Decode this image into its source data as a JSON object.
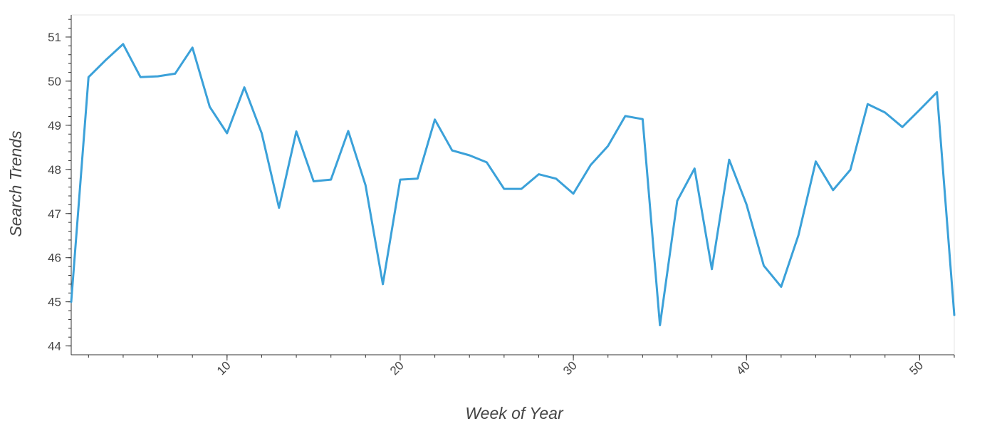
{
  "chart_data": {
    "type": "line",
    "title": "",
    "xlabel": "Week of Year",
    "ylabel": "Search Trends",
    "xlim": [
      1,
      52
    ],
    "ylim": [
      43.8,
      51.5
    ],
    "x_ticks": [
      10,
      20,
      30,
      40,
      50
    ],
    "y_ticks": [
      44,
      45,
      46,
      47,
      48,
      49,
      50,
      51
    ],
    "grid": false,
    "legend": "none",
    "line_color": "#3ba1d9",
    "series": [
      {
        "x": [
          1,
          2,
          3,
          4,
          5,
          6,
          7,
          8,
          9,
          10,
          11,
          12,
          13,
          14,
          15,
          16,
          17,
          18,
          19,
          20,
          21,
          22,
          23,
          24,
          25,
          26,
          27,
          28,
          29,
          30,
          31,
          32,
          33,
          34,
          35,
          36,
          37,
          38,
          39,
          40,
          41,
          42,
          43,
          44,
          45,
          46,
          47,
          48,
          49,
          50,
          51,
          52
        ],
        "values": [
          45.0,
          50.09,
          50.48,
          50.84,
          50.09,
          50.11,
          50.17,
          50.76,
          49.42,
          48.82,
          49.86,
          48.82,
          47.13,
          48.86,
          47.73,
          47.77,
          48.87,
          47.64,
          45.4,
          47.77,
          47.79,
          49.13,
          48.43,
          48.32,
          48.16,
          47.56,
          47.56,
          47.89,
          47.79,
          47.45,
          48.1,
          48.53,
          49.21,
          49.14,
          44.47,
          47.29,
          48.02,
          45.74,
          48.22,
          47.21,
          45.82,
          45.34,
          46.51,
          48.18,
          47.53,
          47.99,
          49.48,
          49.29,
          48.96,
          49.35,
          49.75,
          44.7
        ]
      }
    ]
  }
}
